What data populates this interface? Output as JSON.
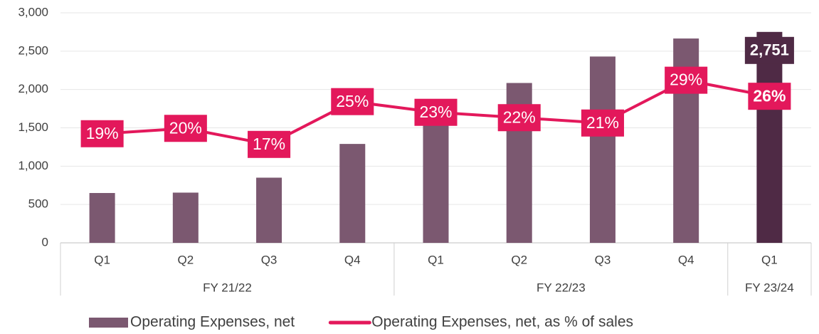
{
  "chart_data": {
    "type": "bar_line",
    "groups": [
      {
        "label": "FY 21/22",
        "categories": [
          "Q1",
          "Q2",
          "Q3",
          "Q4"
        ]
      },
      {
        "label": "FY 22/23",
        "categories": [
          "Q1",
          "Q2",
          "Q3",
          "Q4"
        ]
      },
      {
        "label": "FY 23/24",
        "categories": [
          "Q1"
        ]
      }
    ],
    "series": [
      {
        "name": "Operating Expenses, net",
        "type": "bar",
        "color": "#7b5870",
        "highlight_color": "#4f2a45",
        "values": [
          650,
          655,
          850,
          1290,
          1620,
          2085,
          2430,
          2665,
          2751
        ],
        "value_labels": [
          null,
          null,
          null,
          null,
          null,
          null,
          null,
          null,
          "2,751"
        ]
      },
      {
        "name": "Operating Expenses, net, as % of sales",
        "type": "line",
        "axis": "y2",
        "color": "#e3185b",
        "values": [
          19,
          20,
          17,
          25,
          23,
          22,
          21,
          29,
          26
        ],
        "value_labels": [
          "19%",
          "20%",
          "17%",
          "25%",
          "23%",
          "22%",
          "21%",
          "29%",
          "26%"
        ]
      }
    ],
    "ylim": [
      0,
      3000
    ],
    "yticks": [
      0,
      500,
      {
        "value": 1000,
        "label": "1,000"
      },
      {
        "value": 1500,
        "label": "1,500"
      },
      {
        "value": 2000,
        "label": "2,000"
      },
      {
        "value": 2500,
        "label": "2,500"
      },
      {
        "value": 3000,
        "label": "3,000"
      }
    ],
    "y2lim": [
      -1.4,
      41.6
    ],
    "grid": true,
    "legend": "bottom"
  }
}
